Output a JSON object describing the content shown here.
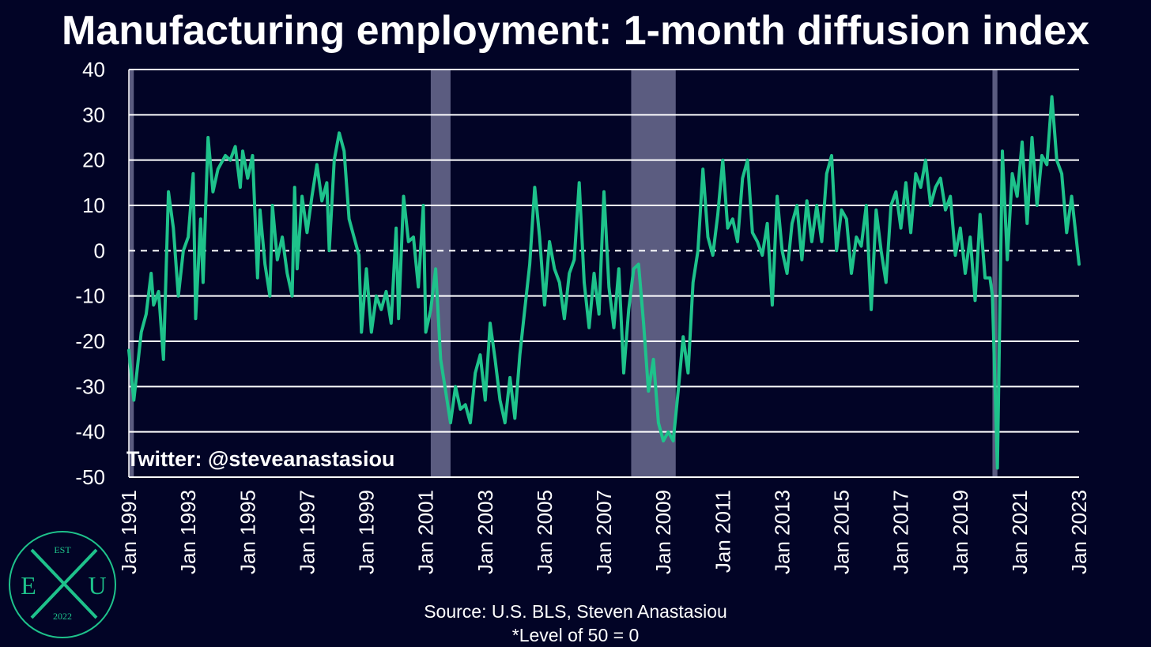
{
  "title": "Manufacturing employment: 1-month diffusion index",
  "watermark": "Twitter: @steveanastasiou",
  "source_line": "Source: U.S. BLS, Steven Anastasiou",
  "note_line": "*Level of 50 = 0",
  "logo": {
    "top_text": "EST",
    "left_letter": "E",
    "right_letter": "U",
    "bottom_text": "2022",
    "color": "#1ec28b"
  },
  "colors": {
    "background": "#020426",
    "line": "#1ec28b",
    "recession": "#5b5c80",
    "grid": "#ffffff"
  },
  "chart_data": {
    "type": "line",
    "title": "Manufacturing employment: 1-month diffusion index",
    "x_start": "1991-01",
    "x_end": "2023-01",
    "ylim": [
      -50,
      40
    ],
    "y_ticks": [
      40,
      30,
      20,
      10,
      0,
      -10,
      -20,
      -30,
      -40,
      -50
    ],
    "x_tick_labels": [
      "Jan 1991",
      "Jan 1993",
      "Jan 1995",
      "Jan 1997",
      "Jan 1999",
      "Jan 2001",
      "Jan 2003",
      "Jan 2005",
      "Jan 2007",
      "Jan 2009",
      "Jan 2011",
      "Jan 2013",
      "Jan 2015",
      "Jan 2017",
      "Jan 2019",
      "Jan 2021",
      "Jan 2023"
    ],
    "grid": true,
    "zero_line": "dashed",
    "recession_shading": [
      {
        "start": "1991-01",
        "end": "1991-03"
      },
      {
        "start": "2001-03",
        "end": "2001-11"
      },
      {
        "start": "2007-12",
        "end": "2009-06"
      },
      {
        "start": "2020-02",
        "end": "2020-04"
      }
    ],
    "series": [
      {
        "color": "#1ec28b",
        "points": [
          [
            "1991-01",
            -22
          ],
          [
            "1991-03",
            -33
          ],
          [
            "1991-06",
            -18
          ],
          [
            "1991-08",
            -14
          ],
          [
            "1991-10",
            -5
          ],
          [
            "1991-11",
            -12
          ],
          [
            "1992-01",
            -9
          ],
          [
            "1992-03",
            -24
          ],
          [
            "1992-05",
            13
          ],
          [
            "1992-07",
            5
          ],
          [
            "1992-09",
            -10
          ],
          [
            "1992-11",
            0
          ],
          [
            "1993-01",
            3
          ],
          [
            "1993-03",
            17
          ],
          [
            "1993-04",
            -15
          ],
          [
            "1993-06",
            7
          ],
          [
            "1993-07",
            -7
          ],
          [
            "1993-09",
            25
          ],
          [
            "1993-11",
            13
          ],
          [
            "1994-01",
            18
          ],
          [
            "1994-04",
            21
          ],
          [
            "1994-06",
            20
          ],
          [
            "1994-08",
            23
          ],
          [
            "1994-10",
            14
          ],
          [
            "1994-11",
            22
          ],
          [
            "1995-01",
            16
          ],
          [
            "1995-03",
            21
          ],
          [
            "1995-05",
            -6
          ],
          [
            "1995-06",
            9
          ],
          [
            "1995-08",
            -3
          ],
          [
            "1995-10",
            -10
          ],
          [
            "1995-11",
            10
          ],
          [
            "1996-01",
            -2
          ],
          [
            "1996-03",
            3
          ],
          [
            "1996-05",
            -5
          ],
          [
            "1996-07",
            -10
          ],
          [
            "1996-08",
            14
          ],
          [
            "1996-09",
            -4
          ],
          [
            "1996-11",
            12
          ],
          [
            "1997-01",
            4
          ],
          [
            "1997-03",
            12
          ],
          [
            "1997-05",
            19
          ],
          [
            "1997-07",
            11
          ],
          [
            "1997-09",
            15
          ],
          [
            "1997-10",
            0
          ],
          [
            "1997-12",
            20
          ],
          [
            "1998-02",
            26
          ],
          [
            "1998-04",
            22
          ],
          [
            "1998-06",
            7
          ],
          [
            "1998-08",
            3
          ],
          [
            "1998-10",
            -1
          ],
          [
            "1998-11",
            -18
          ],
          [
            "1999-01",
            -4
          ],
          [
            "1999-03",
            -18
          ],
          [
            "1999-05",
            -10
          ],
          [
            "1999-07",
            -13
          ],
          [
            "1999-09",
            -9
          ],
          [
            "1999-11",
            -16
          ],
          [
            "2000-01",
            5
          ],
          [
            "2000-02",
            -15
          ],
          [
            "2000-04",
            12
          ],
          [
            "2000-06",
            2
          ],
          [
            "2000-08",
            3
          ],
          [
            "2000-10",
            -8
          ],
          [
            "2000-12",
            10
          ],
          [
            "2001-01",
            -18
          ],
          [
            "2001-03",
            -13
          ],
          [
            "2001-05",
            -4
          ],
          [
            "2001-07",
            -24
          ],
          [
            "2001-09",
            -31
          ],
          [
            "2001-11",
            -38
          ],
          [
            "2002-01",
            -30
          ],
          [
            "2002-03",
            -35
          ],
          [
            "2002-05",
            -34
          ],
          [
            "2002-07",
            -38
          ],
          [
            "2002-09",
            -27
          ],
          [
            "2002-11",
            -23
          ],
          [
            "2003-01",
            -33
          ],
          [
            "2003-03",
            -16
          ],
          [
            "2003-05",
            -24
          ],
          [
            "2003-07",
            -33
          ],
          [
            "2003-09",
            -38
          ],
          [
            "2003-11",
            -28
          ],
          [
            "2004-01",
            -37
          ],
          [
            "2004-03",
            -23
          ],
          [
            "2004-05",
            -13
          ],
          [
            "2004-07",
            -3
          ],
          [
            "2004-09",
            14
          ],
          [
            "2004-11",
            3
          ],
          [
            "2005-01",
            -12
          ],
          [
            "2005-03",
            2
          ],
          [
            "2005-05",
            -4
          ],
          [
            "2005-07",
            -7
          ],
          [
            "2005-09",
            -15
          ],
          [
            "2005-11",
            -5
          ],
          [
            "2006-01",
            -2
          ],
          [
            "2006-03",
            15
          ],
          [
            "2006-05",
            -7
          ],
          [
            "2006-07",
            -17
          ],
          [
            "2006-09",
            -5
          ],
          [
            "2006-11",
            -14
          ],
          [
            "2007-01",
            13
          ],
          [
            "2007-03",
            -8
          ],
          [
            "2007-05",
            -17
          ],
          [
            "2007-07",
            -4
          ],
          [
            "2007-09",
            -27
          ],
          [
            "2007-11",
            -13
          ],
          [
            "2008-01",
            -4
          ],
          [
            "2008-03",
            -3
          ],
          [
            "2008-05",
            -16
          ],
          [
            "2008-07",
            -31
          ],
          [
            "2008-09",
            -24
          ],
          [
            "2008-11",
            -38
          ],
          [
            "2009-01",
            -42
          ],
          [
            "2009-03",
            -40
          ],
          [
            "2009-05",
            -42
          ],
          [
            "2009-07",
            -31
          ],
          [
            "2009-09",
            -19
          ],
          [
            "2009-11",
            -27
          ],
          [
            "2010-01",
            -7
          ],
          [
            "2010-03",
            0
          ],
          [
            "2010-05",
            18
          ],
          [
            "2010-07",
            3
          ],
          [
            "2010-09",
            -1
          ],
          [
            "2010-11",
            8
          ],
          [
            "2011-01",
            20
          ],
          [
            "2011-03",
            5
          ],
          [
            "2011-05",
            7
          ],
          [
            "2011-07",
            2
          ],
          [
            "2011-09",
            16
          ],
          [
            "2011-11",
            20
          ],
          [
            "2012-01",
            4
          ],
          [
            "2012-03",
            2
          ],
          [
            "2012-05",
            -1
          ],
          [
            "2012-07",
            6
          ],
          [
            "2012-09",
            -12
          ],
          [
            "2012-11",
            12
          ],
          [
            "2013-01",
            0
          ],
          [
            "2013-03",
            -5
          ],
          [
            "2013-05",
            6
          ],
          [
            "2013-07",
            10
          ],
          [
            "2013-09",
            -2
          ],
          [
            "2013-11",
            11
          ],
          [
            "2014-01",
            2
          ],
          [
            "2014-03",
            10
          ],
          [
            "2014-05",
            2
          ],
          [
            "2014-07",
            17
          ],
          [
            "2014-09",
            21
          ],
          [
            "2014-11",
            0
          ],
          [
            "2015-01",
            9
          ],
          [
            "2015-03",
            7
          ],
          [
            "2015-05",
            -5
          ],
          [
            "2015-07",
            3
          ],
          [
            "2015-09",
            1
          ],
          [
            "2015-11",
            10
          ],
          [
            "2016-01",
            -13
          ],
          [
            "2016-03",
            9
          ],
          [
            "2016-05",
            0
          ],
          [
            "2016-07",
            -7
          ],
          [
            "2016-09",
            10
          ],
          [
            "2016-11",
            13
          ],
          [
            "2017-01",
            5
          ],
          [
            "2017-03",
            15
          ],
          [
            "2017-05",
            4
          ],
          [
            "2017-07",
            17
          ],
          [
            "2017-09",
            14
          ],
          [
            "2017-11",
            20
          ],
          [
            "2018-01",
            10
          ],
          [
            "2018-03",
            14
          ],
          [
            "2018-05",
            16
          ],
          [
            "2018-07",
            9
          ],
          [
            "2018-09",
            12
          ],
          [
            "2018-11",
            -1
          ],
          [
            "2019-01",
            5
          ],
          [
            "2019-03",
            -5
          ],
          [
            "2019-05",
            3
          ],
          [
            "2019-07",
            -11
          ],
          [
            "2019-09",
            8
          ],
          [
            "2019-11",
            -6
          ],
          [
            "2020-01",
            -6
          ],
          [
            "2020-02",
            -10
          ],
          [
            "2020-04",
            -48
          ],
          [
            "2020-06",
            22
          ],
          [
            "2020-08",
            -2
          ],
          [
            "2020-10",
            17
          ],
          [
            "2020-12",
            12
          ],
          [
            "2021-02",
            24
          ],
          [
            "2021-04",
            6
          ],
          [
            "2021-06",
            25
          ],
          [
            "2021-08",
            10
          ],
          [
            "2021-10",
            21
          ],
          [
            "2021-12",
            19
          ],
          [
            "2022-02",
            34
          ],
          [
            "2022-04",
            20
          ],
          [
            "2022-06",
            17
          ],
          [
            "2022-08",
            4
          ],
          [
            "2022-10",
            12
          ],
          [
            "2022-12",
            2
          ],
          [
            "2023-01",
            -3
          ]
        ]
      }
    ]
  }
}
